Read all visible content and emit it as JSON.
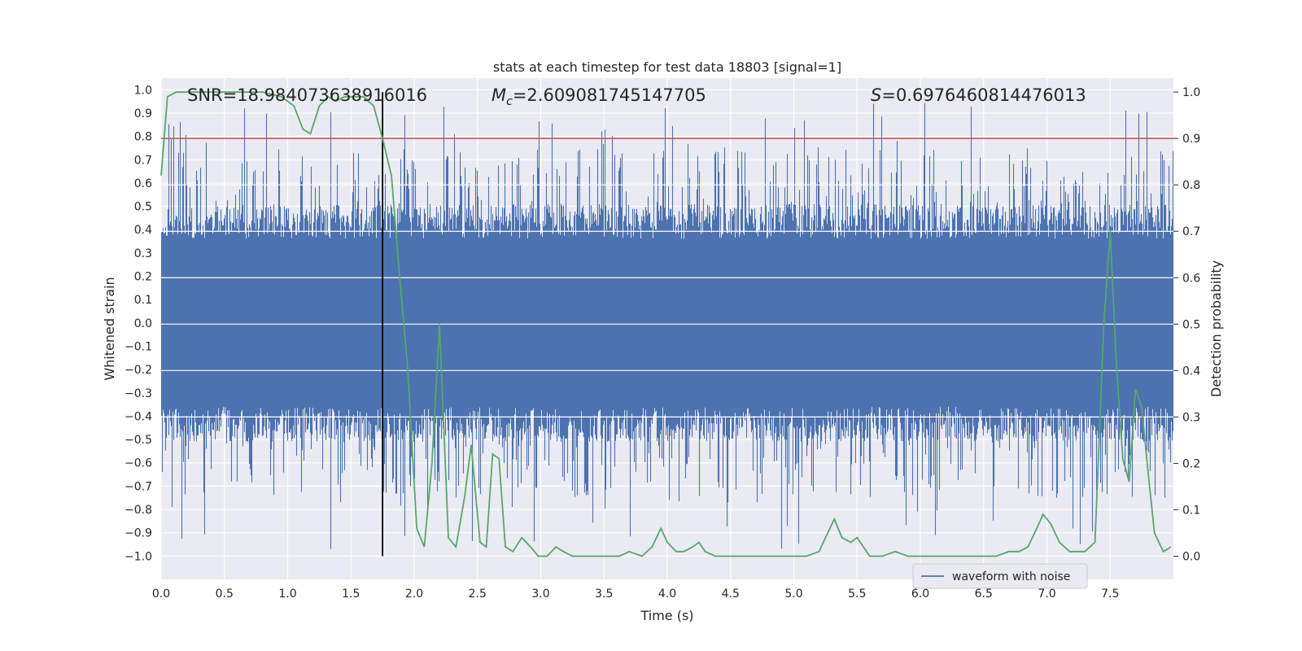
{
  "chart_data": {
    "type": "line",
    "title": "stats at each timestep for test data 18803 [signal=1]",
    "xlabel": "Time (s)",
    "ylabel_left": "Whitened strain",
    "ylabel_right": "Detection probability",
    "xlim": [
      0.0,
      8.0
    ],
    "ylim_left": [
      -1.1,
      1.05
    ],
    "ylim_right": [
      -0.05,
      1.03
    ],
    "x_ticks": [
      "0.0",
      "0.5",
      "1.0",
      "1.5",
      "2.0",
      "2.5",
      "3.0",
      "3.5",
      "4.0",
      "4.5",
      "5.0",
      "5.5",
      "6.0",
      "6.5",
      "7.0",
      "7.5"
    ],
    "y_ticks_left": [
      "1.0",
      "0.9",
      "0.8",
      "0.7",
      "0.6",
      "0.5",
      "0.4",
      "0.3",
      "0.2",
      "0.1",
      "0.0",
      "-0.1",
      "-0.2",
      "-0.3",
      "-0.4",
      "-0.5",
      "-0.6",
      "-0.7",
      "-0.8",
      "-0.9",
      "-1.0"
    ],
    "y_ticks_right": [
      "1.0",
      "0.9",
      "0.8",
      "0.7",
      "0.6",
      "0.5",
      "0.4",
      "0.3",
      "0.2",
      "0.1",
      "0.0"
    ],
    "annotations": {
      "snr": "SNR=18.984073638916016",
      "mc_symbol": "M",
      "mc_sub": "c",
      "mc_value": "=2.609081745147705",
      "s_symbol": "S",
      "s_value": "=0.6976460814476013"
    },
    "threshold_right": 0.9,
    "merger_time": 1.75,
    "legend": {
      "label": "waveform with noise",
      "placement": "lower right"
    },
    "series": [
      {
        "name": "waveform with noise",
        "color": "#4c72b0",
        "axis": "left",
        "description": "noisy whitened strain sampled densely over 0-8 s, roughly in [-1.0, 0.96]"
      },
      {
        "name": "detection probability",
        "color": "#55a868",
        "axis": "right",
        "t": [
          0.0,
          0.05,
          0.12,
          0.2,
          0.4,
          0.6,
          0.8,
          0.95,
          1.05,
          1.12,
          1.18,
          1.25,
          1.32,
          1.38,
          1.45,
          1.52,
          1.6,
          1.68,
          1.75,
          1.82,
          1.88,
          1.95,
          2.02,
          2.08,
          2.14,
          2.2,
          2.27,
          2.33,
          2.4,
          2.45,
          2.52,
          2.57,
          2.62,
          2.67,
          2.72,
          2.78,
          2.85,
          2.92,
          2.98,
          3.05,
          3.12,
          3.18,
          3.25,
          3.35,
          3.45,
          3.55,
          3.62,
          3.7,
          3.8,
          3.88,
          3.95,
          4.0,
          4.07,
          4.13,
          4.2,
          4.25,
          4.3,
          4.38,
          4.5,
          4.6,
          4.7,
          4.8,
          4.9,
          5.0,
          5.1,
          5.2,
          5.25,
          5.32,
          5.38,
          5.45,
          5.5,
          5.6,
          5.7,
          5.8,
          5.9,
          6.0,
          6.2,
          6.4,
          6.5,
          6.6,
          6.7,
          6.78,
          6.85,
          6.92,
          6.97,
          7.03,
          7.1,
          7.18,
          7.3,
          7.38,
          7.45,
          7.5,
          7.55,
          7.6,
          7.65,
          7.7,
          7.75,
          7.8,
          7.85,
          7.92,
          7.98
        ],
        "values": [
          0.82,
          0.99,
          1.0,
          1.0,
          1.0,
          1.0,
          1.0,
          0.99,
          0.97,
          0.92,
          0.91,
          0.97,
          0.99,
          0.98,
          0.99,
          0.99,
          0.99,
          0.97,
          0.9,
          0.82,
          0.62,
          0.4,
          0.06,
          0.02,
          0.2,
          0.5,
          0.04,
          0.02,
          0.13,
          0.24,
          0.03,
          0.02,
          0.22,
          0.21,
          0.02,
          0.01,
          0.04,
          0.02,
          0.0,
          0.0,
          0.02,
          0.01,
          0.0,
          0.0,
          0.0,
          0.0,
          0.0,
          0.01,
          0.0,
          0.02,
          0.06,
          0.03,
          0.01,
          0.01,
          0.02,
          0.03,
          0.01,
          0.0,
          0.0,
          0.0,
          0.0,
          0.0,
          0.0,
          0.0,
          0.0,
          0.01,
          0.04,
          0.08,
          0.04,
          0.03,
          0.04,
          0.0,
          0.0,
          0.01,
          0.0,
          0.0,
          0.0,
          0.0,
          0.0,
          0.0,
          0.01,
          0.01,
          0.02,
          0.06,
          0.09,
          0.07,
          0.03,
          0.01,
          0.01,
          0.03,
          0.5,
          0.7,
          0.41,
          0.21,
          0.16,
          0.36,
          0.32,
          0.18,
          0.05,
          0.01,
          0.02
        ]
      }
    ]
  }
}
